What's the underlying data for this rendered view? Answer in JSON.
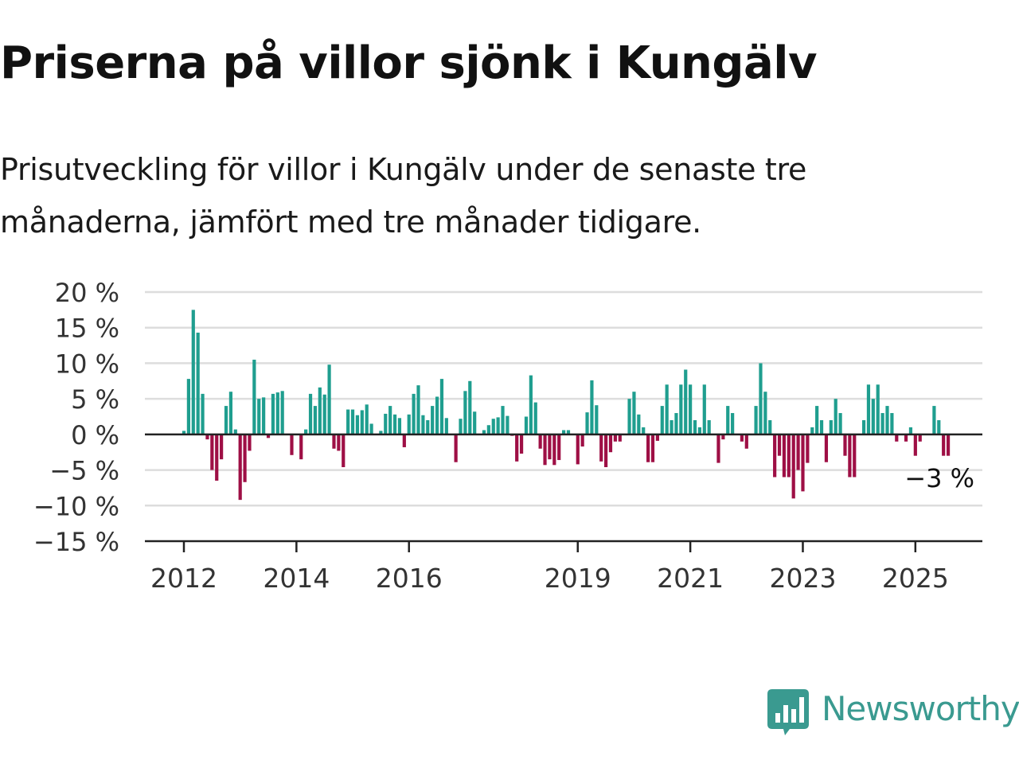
{
  "title": "Priserna på villor sjönk i Kungälv",
  "subtitle": "Prisutveckling för villor i Kungälv under de senaste tre månaderna, jämfört med tre månader tidigare.",
  "colors": {
    "positive": "#1f9e8f",
    "negative": "#9e0f45",
    "grid": "#dddddd",
    "axis": "#222222",
    "logo": "#3a9a90"
  },
  "logo": {
    "text": "Newsworthy",
    "icon": "bar-chart-speech-bubble-icon"
  },
  "chart_data": {
    "type": "bar",
    "unit": "%",
    "ylim": [
      -15,
      20
    ],
    "yticks": [
      {
        "value": 20,
        "label": "20 %"
      },
      {
        "value": 15,
        "label": "15 %"
      },
      {
        "value": 10,
        "label": "10 %"
      },
      {
        "value": 5,
        "label": "5 %"
      },
      {
        "value": 0,
        "label": "0 %"
      },
      {
        "value": -5,
        "label": "−5 %"
      },
      {
        "value": -10,
        "label": "−10 %"
      },
      {
        "value": -15,
        "label": "−15 %"
      }
    ],
    "xticks": [
      {
        "date": "2012-01",
        "label": "2012"
      },
      {
        "date": "2014-01",
        "label": "2014"
      },
      {
        "date": "2016-01",
        "label": "2016"
      },
      {
        "date": "2019-01",
        "label": "2019"
      },
      {
        "date": "2021-01",
        "label": "2021"
      },
      {
        "date": "2023-01",
        "label": "2023"
      },
      {
        "date": "2025-01",
        "label": "2025"
      }
    ],
    "start_month": "2012-01",
    "grid": true,
    "end_label": "−3 %",
    "values": [
      0.5,
      7.8,
      17.5,
      14.3,
      5.7,
      -0.7,
      -5.0,
      -6.5,
      -3.5,
      4.0,
      6.0,
      0.7,
      -9.2,
      -6.7,
      -2.3,
      10.5,
      5.0,
      5.2,
      -0.5,
      5.7,
      5.9,
      6.1,
      0.0,
      -2.9,
      0.0,
      -3.5,
      0.7,
      5.7,
      4.0,
      6.6,
      5.6,
      9.8,
      -2.0,
      -2.3,
      -4.6,
      3.5,
      3.5,
      2.7,
      3.4,
      4.2,
      1.5,
      0.0,
      0.5,
      2.9,
      4.0,
      2.8,
      2.3,
      -1.8,
      2.8,
      5.7,
      6.9,
      2.7,
      2.0,
      4.0,
      5.3,
      7.8,
      2.3,
      0.0,
      -3.9,
      2.2,
      6.1,
      7.5,
      3.2,
      0.0,
      0.6,
      1.3,
      2.2,
      2.4,
      4.0,
      2.6,
      -0.2,
      -3.8,
      -2.7,
      2.5,
      8.3,
      4.5,
      -2.0,
      -4.3,
      -3.5,
      -4.3,
      -3.6,
      0.6,
      0.6,
      0.0,
      -4.2,
      -1.7,
      3.1,
      7.6,
      4.1,
      -3.8,
      -4.6,
      -2.5,
      -1.0,
      -1.0,
      0.0,
      5.0,
      6.0,
      2.8,
      1.0,
      -3.9,
      -3.9,
      -0.9,
      4.0,
      7.0,
      2.0,
      3.0,
      7.0,
      9.1,
      7.0,
      2.0,
      1.0,
      7.0,
      2.0,
      0.0,
      -4.0,
      -0.7,
      4.0,
      3.0,
      0.0,
      -1.0,
      -2.0,
      0.0,
      4.0,
      10.0,
      6.0,
      2.0,
      -6.0,
      -3.0,
      -6.0,
      -6.0,
      -9.0,
      -5.0,
      -8.0,
      -4.0,
      1.0,
      4.0,
      2.0,
      -3.9,
      2.0,
      5.0,
      3.0,
      -3.0,
      -6.0,
      -6.0,
      0.0,
      2.0,
      7.0,
      5.0,
      7.0,
      3.0,
      4.0,
      3.0,
      -1.0,
      0.0,
      -1.0,
      1.0,
      -3.0,
      -1.0,
      0.0,
      0.0,
      4.0,
      2.0,
      -3.0,
      -3.0
    ]
  }
}
